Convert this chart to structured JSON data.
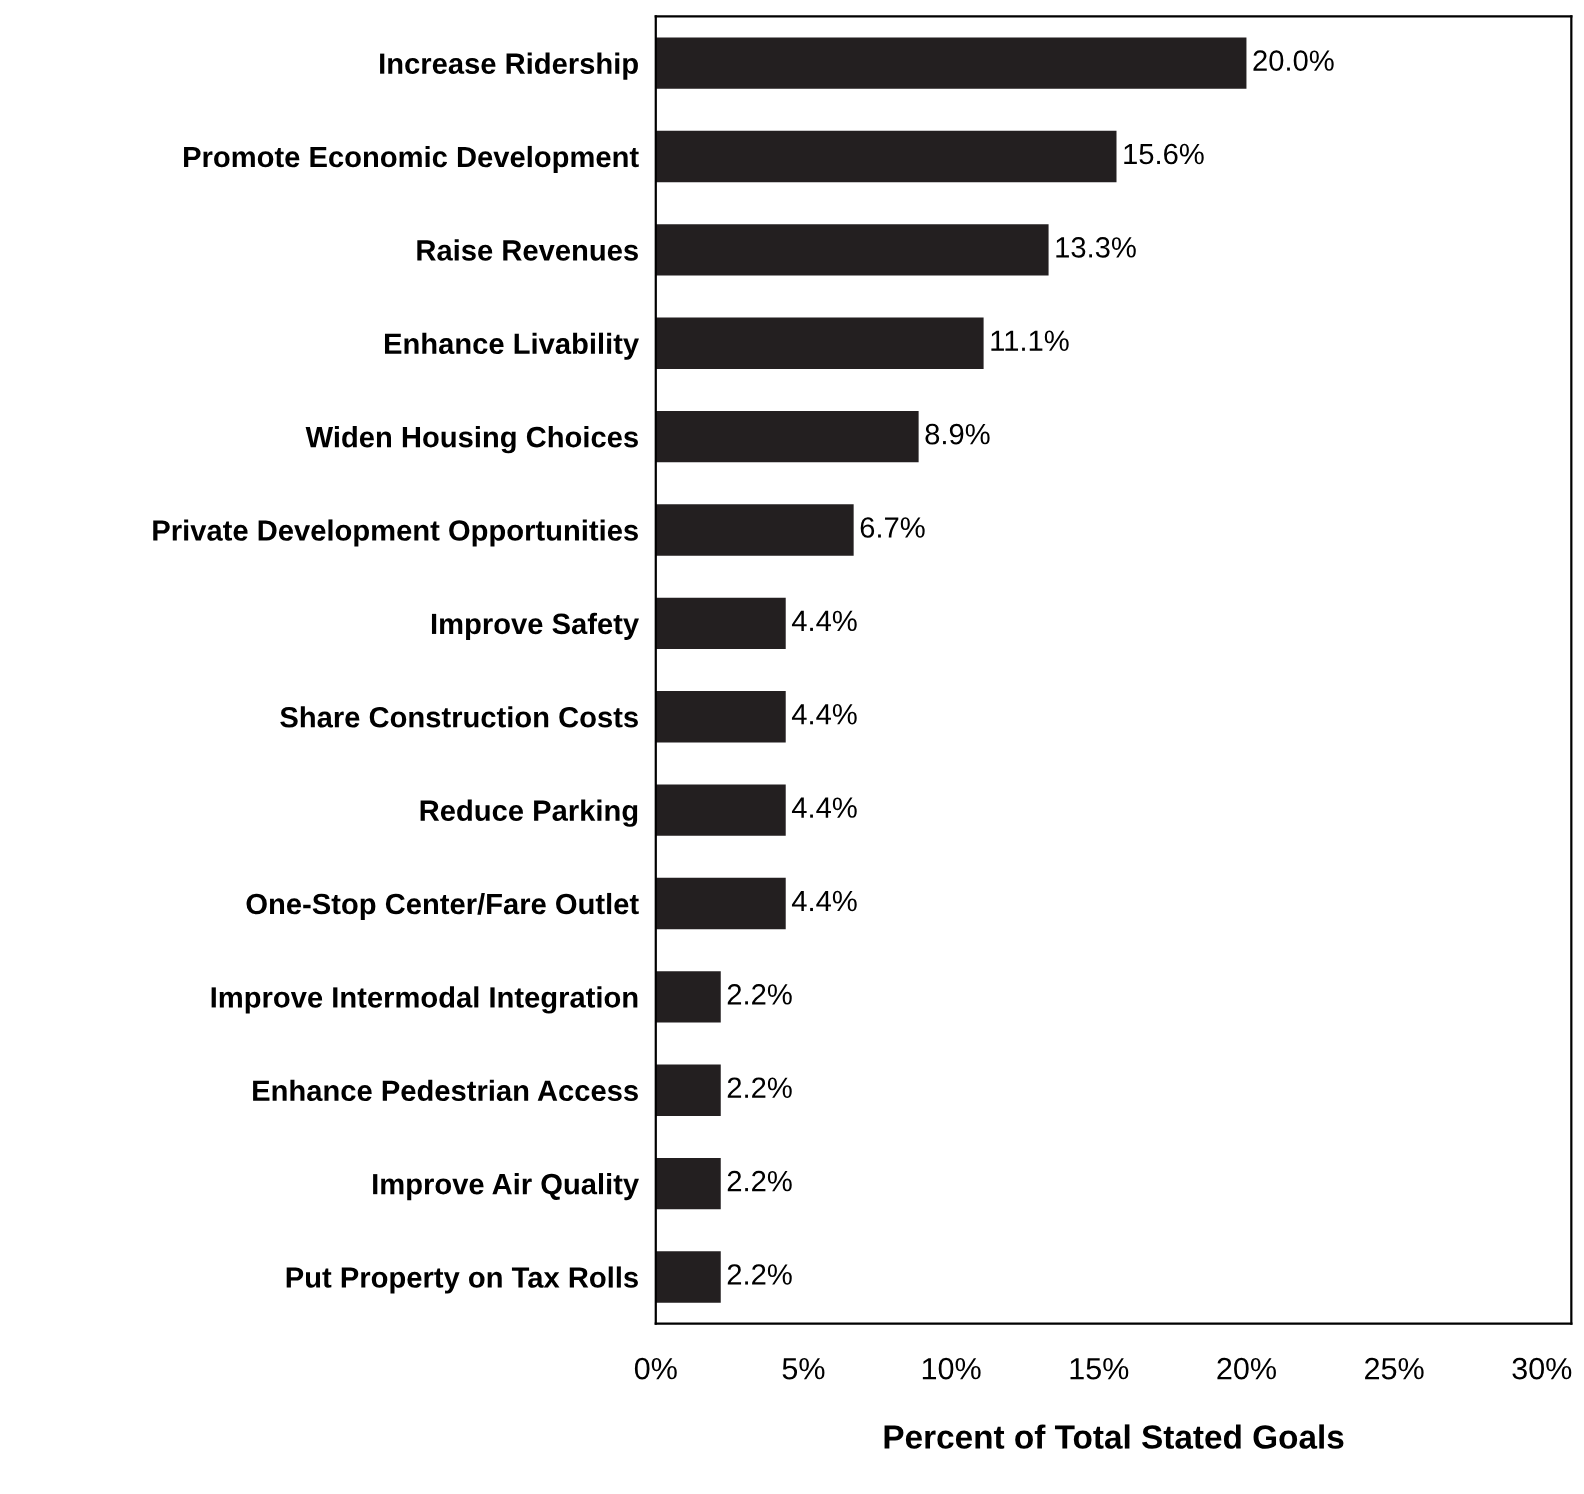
{
  "chart_data": {
    "type": "bar",
    "orientation": "horizontal",
    "xlabel": "Percent of Total Stated Goals",
    "categories": [
      "Increase Ridership",
      "Promote Economic Development",
      "Raise Revenues",
      "Enhance Livability",
      "Widen Housing Choices",
      "Private Development Opportunities",
      "Improve Safety",
      "Share Construction Costs",
      "Reduce Parking",
      "One-Stop Center/Fare Outlet",
      "Improve Intermodal Integration",
      "Enhance Pedestrian Access",
      "Improve Air Quality",
      "Put Property on Tax Rolls"
    ],
    "values": [
      20.0,
      15.6,
      13.3,
      11.1,
      8.9,
      6.7,
      4.4,
      4.4,
      4.4,
      4.4,
      2.2,
      2.2,
      2.2,
      2.2
    ],
    "value_labels": [
      "20.0%",
      "15.6%",
      "13.3%",
      "11.1%",
      "8.9%",
      "6.7%",
      "4.4%",
      "4.4%",
      "4.4%",
      "4.4%",
      "2.2%",
      "2.2%",
      "2.2%",
      "2.2%"
    ],
    "color": "#231f20",
    "xlim": [
      0,
      31
    ],
    "xticks": [
      {
        "value": 0,
        "label": "0%"
      },
      {
        "value": 5,
        "label": "5%"
      },
      {
        "value": 10,
        "label": "10%"
      },
      {
        "value": 15,
        "label": "15%"
      },
      {
        "value": 20,
        "label": "20%"
      },
      {
        "value": 25,
        "label": "25%"
      },
      {
        "value": 30,
        "label": "30%"
      }
    ],
    "grid": false,
    "legend": false
  }
}
